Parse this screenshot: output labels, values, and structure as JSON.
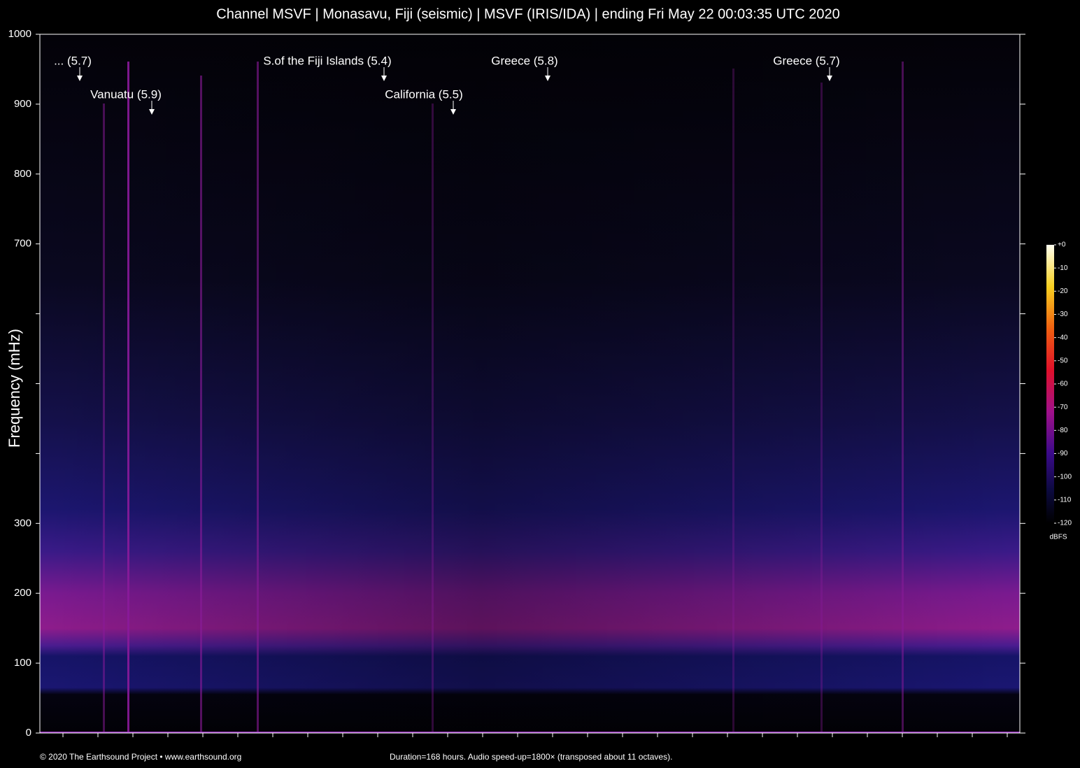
{
  "chart_data": {
    "type": "spectrogram",
    "title": "Channel MSVF | Monasavu, Fiji (seismic) | MSVF (IRIS/IDA) | ending Fri May 22 00:03:35 UTC 2020",
    "ylabel": "Frequency (mHz)",
    "ylim": [
      0,
      1000
    ],
    "yticks": [
      0,
      100,
      200,
      300,
      {
        "value": 400,
        "label": null
      },
      {
        "value": 500,
        "label": null
      },
      {
        "value": 600,
        "label": null
      },
      700,
      800,
      900,
      1000
    ],
    "annotations": [
      {
        "text": "... (5.7)"
      },
      {
        "text": "Vanuatu (5.9)"
      },
      {
        "text": "S.of the Fiji Islands (5.4)"
      },
      {
        "text": "California (5.5)"
      },
      {
        "text": "Greece (5.8)"
      },
      {
        "text": "Greece (5.7)"
      }
    ],
    "colorbar": {
      "label": "dBFS",
      "lim": [
        -120,
        0
      ],
      "ticks": [
        {
          "value": 0,
          "label": "+0"
        },
        -10,
        -20,
        -30,
        -40,
        -50,
        -60,
        -70,
        -80,
        -90,
        -100,
        -110,
        -120
      ]
    },
    "credit": "© 2020 The Earthsound Project • www.earthsound.org",
    "note": "Duration=168 hours. Audio speed-up=1800× (transposed about 11 octaves)."
  }
}
